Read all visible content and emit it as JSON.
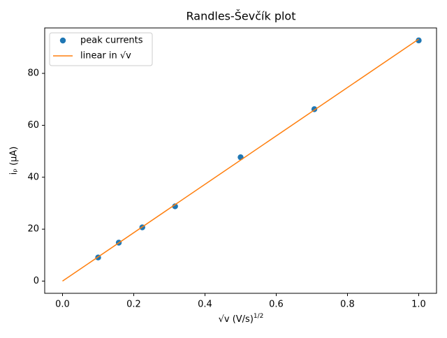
{
  "chart_data": {
    "type": "scatter",
    "title": "Randles-Ševčík plot",
    "xlabel": "√v (V/s)",
    "xlabel_exponent": "1/2",
    "ylabel": "iₚ (μA)",
    "series": [
      {
        "name": "peak currents",
        "mode": "markers",
        "color": "#1f77b4",
        "x": [
          0.1,
          0.158,
          0.224,
          0.316,
          0.5,
          0.707,
          1.0
        ],
        "values": [
          9.1,
          14.8,
          20.7,
          28.8,
          47.7,
          66.2,
          92.7
        ]
      },
      {
        "name": "linear in √v",
        "mode": "line",
        "color": "#ff7f0e",
        "x": [
          0,
          1
        ],
        "values": [
          0,
          93.2
        ]
      }
    ],
    "xlim": [
      -0.05,
      1.05
    ],
    "xticks": [
      {
        "value": 0,
        "label": "0.0"
      },
      0.2,
      0.4,
      0.6,
      0.8,
      {
        "value": 1,
        "label": "1.0"
      }
    ],
    "ylim": [
      -4.7,
      97.5
    ],
    "yticks": [
      0,
      20,
      40,
      60,
      80
    ],
    "legend": "upper left",
    "grid": false
  }
}
